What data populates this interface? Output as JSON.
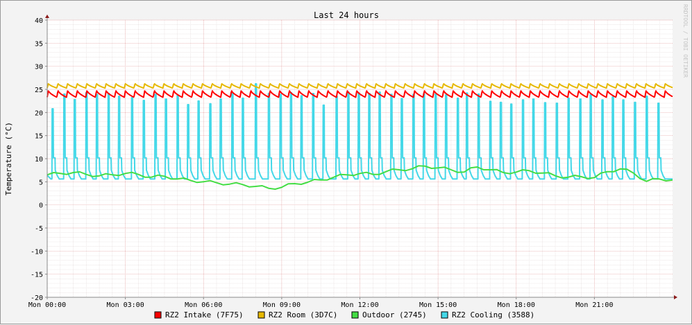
{
  "watermark": "RRDTOOL / TOBI OETIKER",
  "colors": {
    "background": "#f3f3f3",
    "canvas": "#ffffff",
    "grid_minor": "#e0d6d6",
    "grid_major": "#e29a9a",
    "axis": "#888888",
    "arrow": "#8b1a1a"
  },
  "chart_data": {
    "type": "line",
    "title": "Last 24 hours",
    "xlabel": "",
    "ylabel": "Temperature (°C)",
    "xlim": [
      0,
      24
    ],
    "ylim": [
      -20,
      40
    ],
    "x_tick_labels": [
      "Mon 00:00",
      "Mon 03:00",
      "Mon 06:00",
      "Mon 09:00",
      "Mon 12:00",
      "Mon 15:00",
      "Mon 18:00",
      "Mon 21:00"
    ],
    "y_ticks": [
      -20,
      -15,
      -10,
      -5,
      0,
      5,
      10,
      15,
      20,
      25,
      30,
      35,
      40
    ],
    "grid": true,
    "legend_position": "bottom",
    "series": [
      {
        "name": "RZ2 Intake (7F75)",
        "color": "#ff0000",
        "pattern": "sawtooth",
        "cycle_hours": 0.37,
        "low": 23.3,
        "high": 24.8
      },
      {
        "name": "RZ2 Room (3D7C)",
        "color": "#e6b800",
        "pattern": "sawtooth",
        "cycle_hours": 0.37,
        "low": 25.3,
        "high": 26.3
      },
      {
        "name": "Outdoor (2745)",
        "color": "#44dd44",
        "pattern": "curve",
        "x": [
          0,
          0.5,
          1,
          1.5,
          2,
          2.5,
          3,
          3.5,
          4,
          4.5,
          5,
          5.5,
          6,
          6.5,
          7,
          7.5,
          8,
          8.5,
          9,
          9.5,
          10,
          10.5,
          11,
          11.5,
          12,
          12.5,
          13,
          13.5,
          14,
          14.5,
          15,
          15.5,
          16,
          16.5,
          17,
          17.5,
          18,
          18.5,
          19,
          19.5,
          20,
          20.5,
          21,
          21.5,
          22,
          22.5,
          23,
          23.5,
          24
        ],
        "values": [
          6.5,
          6.8,
          7.0,
          6.6,
          6.3,
          6.5,
          6.8,
          6.6,
          6.0,
          6.2,
          5.6,
          5.3,
          5.0,
          4.8,
          4.5,
          4.4,
          4.0,
          3.6,
          3.8,
          4.6,
          4.9,
          5.4,
          6.0,
          6.5,
          6.8,
          6.6,
          7.2,
          7.6,
          7.8,
          8.4,
          8.0,
          7.6,
          7.1,
          8.2,
          7.6,
          7.0,
          7.1,
          7.4,
          6.9,
          6.3,
          6.0,
          6.1,
          5.9,
          7.2,
          7.8,
          6.9,
          5.1,
          5.6,
          5.4
        ]
      },
      {
        "name": "RZ2 Cooling (3588)",
        "color": "#44d8e8",
        "pattern": "spikes",
        "baseline": 5.6,
        "spike_times": [
          0.2,
          0.65,
          1.05,
          1.5,
          1.9,
          2.35,
          2.75,
          3.25,
          3.7,
          4.15,
          4.55,
          5.0,
          5.4,
          5.8,
          6.25,
          6.65,
          7.1,
          7.5,
          8.0,
          8.5,
          8.95,
          9.35,
          9.75,
          10.2,
          10.6,
          11.1,
          11.55,
          11.95,
          12.35,
          12.75,
          13.2,
          13.6,
          14.05,
          14.45,
          14.9,
          15.3,
          15.75,
          16.1,
          16.55,
          17.0,
          17.4,
          17.8,
          18.25,
          18.65,
          19.1,
          19.55,
          20.0,
          20.45,
          20.85,
          21.3,
          21.7,
          22.1,
          22.55,
          23.0,
          23.45
        ],
        "spike_peaks": [
          20.8,
          24.0,
          22.8,
          24.3,
          23.9,
          24.1,
          23.5,
          23.2,
          22.6,
          23.9,
          22.9,
          23.7,
          21.7,
          22.5,
          21.9,
          22.9,
          24.3,
          23.1,
          26.2,
          24.1,
          23.9,
          24.3,
          23.6,
          24.1,
          21.6,
          23.5,
          24.4,
          24.2,
          24.1,
          24.4,
          23.9,
          23.0,
          23.9,
          24.0,
          24.0,
          23.8,
          23.1,
          24.2,
          24.0,
          22.4,
          22.2,
          21.8,
          22.7,
          22.9,
          22.1,
          22.0,
          23.1,
          22.9,
          23.8,
          22.7,
          23.4,
          22.7,
          22.2,
          23.5,
          22.0
        ]
      }
    ]
  }
}
